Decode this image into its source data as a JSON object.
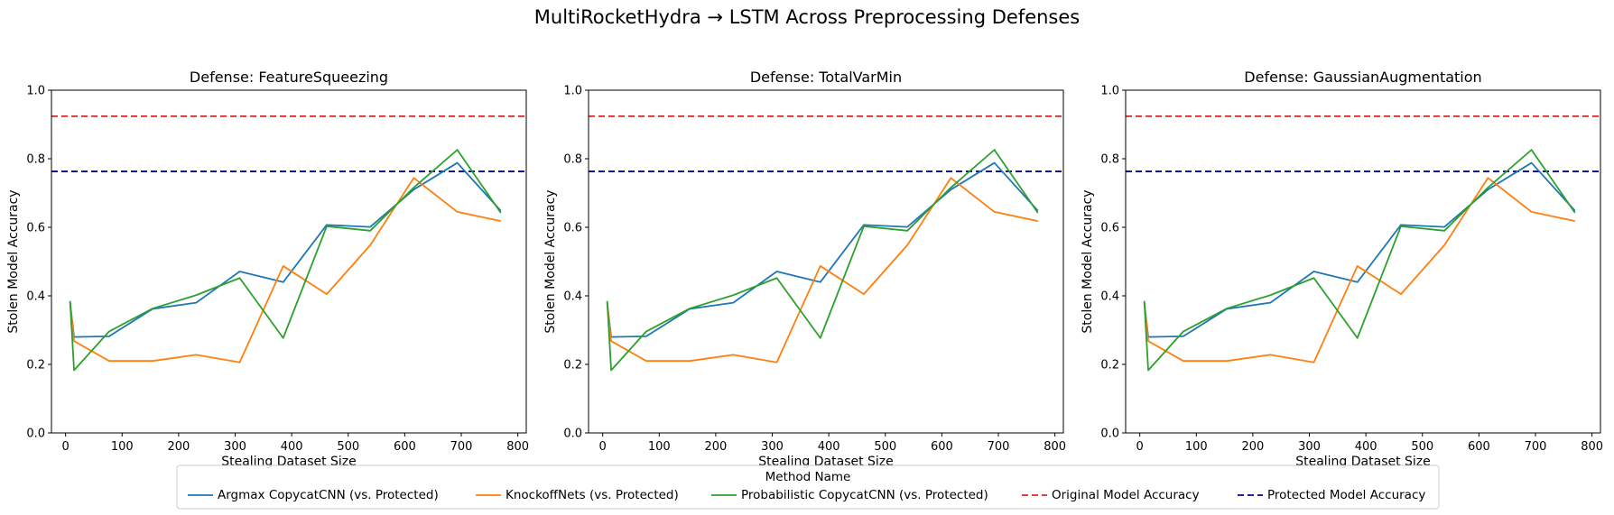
{
  "figure": {
    "title": "MultiRocketHydra → LSTM Across Preprocessing Defenses"
  },
  "legend": {
    "title": "Method Name",
    "placement": "bottom-center",
    "entries": [
      {
        "label": "Argmax CopycatCNN (vs. Protected)",
        "color": "#1f77b4",
        "style": "solid"
      },
      {
        "label": "KnockoffNets (vs. Protected)",
        "color": "#ff7f0e",
        "style": "solid"
      },
      {
        "label": "Probabilistic CopycatCNN (vs. Protected)",
        "color": "#2ca02c",
        "style": "solid"
      },
      {
        "label": "Original Model Accuracy",
        "color": "#d62728",
        "style": "dashed"
      },
      {
        "label": "Protected Model Accuracy",
        "color": "#00008b",
        "style": "dashed"
      }
    ]
  },
  "chart_data": [
    {
      "type": "line",
      "title": "Defense: FeatureSqueezing",
      "xlabel": "Stealing Dataset Size",
      "ylabel": "Stolen Model Accuracy",
      "xlim": [
        -25,
        815
      ],
      "ylim": [
        0,
        1
      ],
      "xticks": [
        0,
        100,
        200,
        300,
        400,
        500,
        600,
        700,
        800
      ],
      "yticks": [
        0.0,
        0.2,
        0.4,
        0.6,
        0.8,
        1.0
      ],
      "grid": false,
      "x": [
        8,
        15,
        77,
        154,
        231,
        308,
        385,
        462,
        539,
        616,
        693,
        770
      ],
      "series": [
        {
          "name": "Argmax CopycatCNN (vs. Protected)",
          "color": "#1f77b4",
          "values": [
            0.38,
            0.28,
            0.282,
            0.362,
            0.38,
            0.471,
            0.44,
            0.607,
            0.601,
            0.71,
            0.788,
            0.648
          ]
        },
        {
          "name": "KnockoffNets (vs. Protected)",
          "color": "#ff7f0e",
          "values": [
            0.38,
            0.268,
            0.21,
            0.21,
            0.228,
            0.206,
            0.487,
            0.405,
            0.548,
            0.744,
            0.645,
            0.618
          ]
        },
        {
          "name": "Probabilistic CopycatCNN (vs. Protected)",
          "color": "#2ca02c",
          "values": [
            0.385,
            0.183,
            0.296,
            0.363,
            0.402,
            0.452,
            0.277,
            0.603,
            0.59,
            0.716,
            0.826,
            0.642
          ]
        }
      ],
      "hlines": [
        {
          "name": "Original Model Accuracy",
          "value": 0.924,
          "color": "#d62728"
        },
        {
          "name": "Protected Model Accuracy",
          "value": 0.763,
          "color": "#00008b"
        }
      ]
    },
    {
      "type": "line",
      "title": "Defense: TotalVarMin",
      "xlabel": "Stealing Dataset Size",
      "ylabel": "Stolen Model Accuracy",
      "xlim": [
        -25,
        815
      ],
      "ylim": [
        0,
        1
      ],
      "xticks": [
        0,
        100,
        200,
        300,
        400,
        500,
        600,
        700,
        800
      ],
      "yticks": [
        0.0,
        0.2,
        0.4,
        0.6,
        0.8,
        1.0
      ],
      "grid": false,
      "x": [
        8,
        15,
        77,
        154,
        231,
        308,
        385,
        462,
        539,
        616,
        693,
        770
      ],
      "series": [
        {
          "name": "Argmax CopycatCNN (vs. Protected)",
          "color": "#1f77b4",
          "values": [
            0.38,
            0.28,
            0.282,
            0.362,
            0.38,
            0.471,
            0.44,
            0.607,
            0.601,
            0.71,
            0.788,
            0.648
          ]
        },
        {
          "name": "KnockoffNets (vs. Protected)",
          "color": "#ff7f0e",
          "values": [
            0.38,
            0.268,
            0.21,
            0.21,
            0.228,
            0.206,
            0.487,
            0.405,
            0.548,
            0.744,
            0.645,
            0.618
          ]
        },
        {
          "name": "Probabilistic CopycatCNN (vs. Protected)",
          "color": "#2ca02c",
          "values": [
            0.385,
            0.183,
            0.296,
            0.363,
            0.402,
            0.452,
            0.277,
            0.603,
            0.59,
            0.716,
            0.826,
            0.642
          ]
        }
      ],
      "hlines": [
        {
          "name": "Original Model Accuracy",
          "value": 0.924,
          "color": "#d62728"
        },
        {
          "name": "Protected Model Accuracy",
          "value": 0.763,
          "color": "#00008b"
        }
      ]
    },
    {
      "type": "line",
      "title": "Defense: GaussianAugmentation",
      "xlabel": "Stealing Dataset Size",
      "ylabel": "Stolen Model Accuracy",
      "xlim": [
        -25,
        815
      ],
      "ylim": [
        0,
        1
      ],
      "xticks": [
        0,
        100,
        200,
        300,
        400,
        500,
        600,
        700,
        800
      ],
      "yticks": [
        0.0,
        0.2,
        0.4,
        0.6,
        0.8,
        1.0
      ],
      "grid": false,
      "x": [
        8,
        15,
        77,
        154,
        231,
        308,
        385,
        462,
        539,
        616,
        693,
        770
      ],
      "series": [
        {
          "name": "Argmax CopycatCNN (vs. Protected)",
          "color": "#1f77b4",
          "values": [
            0.38,
            0.28,
            0.282,
            0.362,
            0.38,
            0.471,
            0.44,
            0.607,
            0.601,
            0.71,
            0.788,
            0.648
          ]
        },
        {
          "name": "KnockoffNets (vs. Protected)",
          "color": "#ff7f0e",
          "values": [
            0.38,
            0.268,
            0.21,
            0.21,
            0.228,
            0.206,
            0.487,
            0.405,
            0.548,
            0.744,
            0.645,
            0.618
          ]
        },
        {
          "name": "Probabilistic CopycatCNN (vs. Protected)",
          "color": "#2ca02c",
          "values": [
            0.385,
            0.183,
            0.296,
            0.363,
            0.402,
            0.452,
            0.277,
            0.603,
            0.59,
            0.716,
            0.826,
            0.642
          ]
        }
      ],
      "hlines": [
        {
          "name": "Original Model Accuracy",
          "value": 0.924,
          "color": "#d62728"
        },
        {
          "name": "Protected Model Accuracy",
          "value": 0.763,
          "color": "#00008b"
        }
      ]
    }
  ]
}
